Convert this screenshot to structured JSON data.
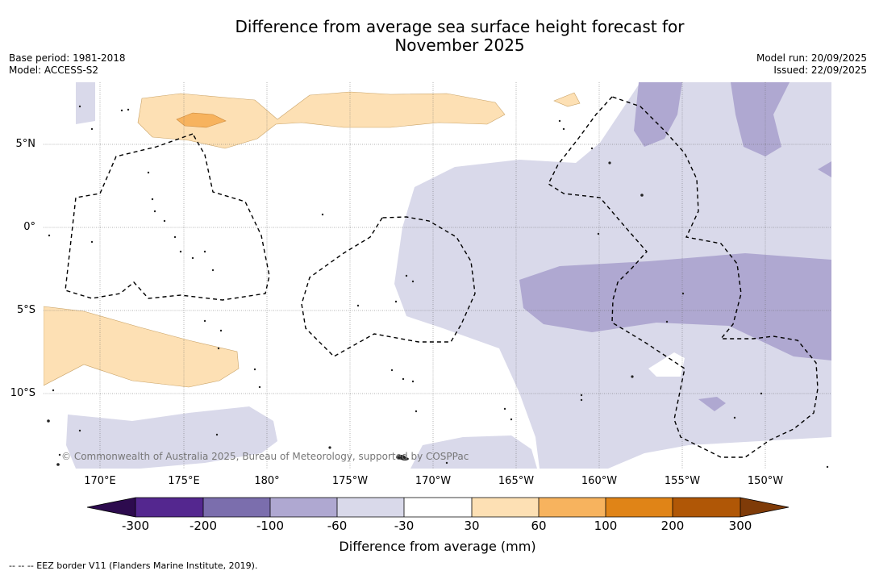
{
  "title_line1": "Difference from average sea surface height forecast for",
  "title_line2": "November 2025",
  "meta_left": [
    "Base period: 1981-2018",
    "Model: ACCESS-S2"
  ],
  "meta_right": [
    "Model run: 20/09/2025",
    "Issued: 22/09/2025"
  ],
  "map": {
    "lat_labels": [
      "5°N",
      "0°",
      "5°S",
      "10°S"
    ],
    "lon_labels": [
      "170°E",
      "175°E",
      "180°",
      "175°W",
      "170°W",
      "165°W",
      "160°W",
      "155°W",
      "150°W"
    ],
    "copyright": "© Commonwealth of Australia 2025, Bureau of Meteorology, supported by COSPPac"
  },
  "legend": {
    "title": "Difference from average (mm)",
    "ticks": [
      "-300",
      "-200",
      "-100",
      "-60",
      "-30",
      "30",
      "60",
      "100",
      "200",
      "300"
    ],
    "colors": {
      "below_-300": "#2d0b4e",
      "-300_-200": "#54278f",
      "-200_-100": "#7b6ead",
      "-100_-60": "#afa8d1",
      "-60_-30": "#d9d9ea",
      "-30_30": "#ffffff",
      "30_60": "#fde0b4",
      "60_100": "#f7b35e",
      "100_200": "#e08417",
      "200_300": "#b05706",
      "above_300": "#7f3b08"
    }
  },
  "footnote": "--  --  -- EEZ border V11 (Flanders Marine Institute, 2019)."
}
